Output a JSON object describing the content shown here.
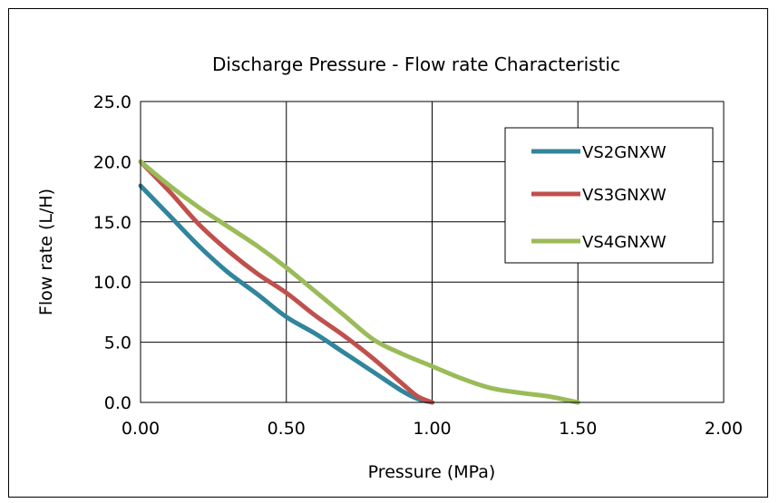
{
  "chart_data": {
    "type": "line",
    "title": "Discharge Pressure - Flow rate Characteristic",
    "xlabel": "Pressure (MPa)",
    "ylabel": "Flow rate (L/H)",
    "xlim": [
      0,
      2
    ],
    "ylim": [
      0,
      25
    ],
    "x_ticks": [
      "0.00",
      "0.50",
      "1.00",
      "1.50",
      "2.00"
    ],
    "y_ticks": [
      "0.0",
      "5.0",
      "10.0",
      "15.0",
      "20.0",
      "25.0"
    ],
    "grid": true,
    "legend_position": "top-right",
    "series": [
      {
        "name": "VS2GNXW",
        "color": "#31859C",
        "points": [
          [
            0,
            18
          ],
          [
            0.1,
            15.5
          ],
          [
            0.2,
            13
          ],
          [
            0.3,
            10.8
          ],
          [
            0.4,
            9
          ],
          [
            0.5,
            7.1
          ],
          [
            0.6,
            5.7
          ],
          [
            0.7,
            4.1
          ],
          [
            0.8,
            2.5
          ],
          [
            0.9,
            0.9
          ],
          [
            0.95,
            0.3
          ],
          [
            1.0,
            0
          ]
        ]
      },
      {
        "name": "VS3GNXW",
        "color": "#C0504D",
        "points": [
          [
            0,
            20
          ],
          [
            0.1,
            17.5
          ],
          [
            0.2,
            14.8
          ],
          [
            0.3,
            12.6
          ],
          [
            0.4,
            10.7
          ],
          [
            0.5,
            9.1
          ],
          [
            0.6,
            7.2
          ],
          [
            0.7,
            5.5
          ],
          [
            0.8,
            3.6
          ],
          [
            0.9,
            1.5
          ],
          [
            0.95,
            0.5
          ],
          [
            1.0,
            0
          ]
        ]
      },
      {
        "name": "VS4GNXW",
        "color": "#9BBB59",
        "points": [
          [
            0,
            20
          ],
          [
            0.1,
            18
          ],
          [
            0.2,
            16.2
          ],
          [
            0.3,
            14.6
          ],
          [
            0.4,
            13
          ],
          [
            0.5,
            11.2
          ],
          [
            0.6,
            9.2
          ],
          [
            0.7,
            7.2
          ],
          [
            0.8,
            5.2
          ],
          [
            0.9,
            4
          ],
          [
            1.0,
            3
          ],
          [
            1.1,
            2
          ],
          [
            1.2,
            1.2
          ],
          [
            1.3,
            0.8
          ],
          [
            1.4,
            0.5
          ],
          [
            1.5,
            0
          ]
        ]
      }
    ]
  }
}
